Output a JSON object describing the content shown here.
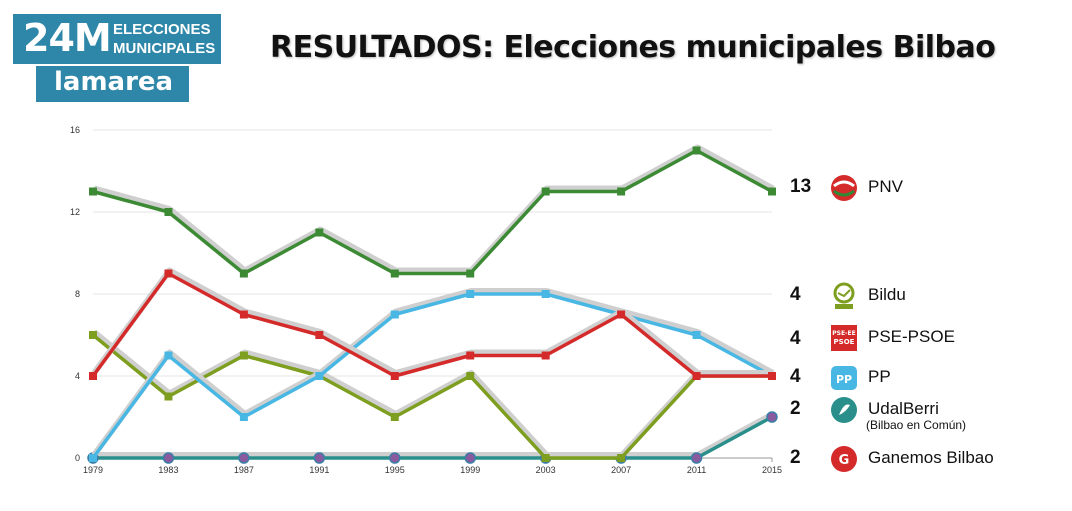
{
  "logo": {
    "big": "24M",
    "line1": "ELECCIONES",
    "line2": "MUNICIPALES",
    "brand": "lamarea"
  },
  "title": "RESULTADOS: Elecciones municipales Bilbao",
  "chart_data": {
    "type": "line",
    "title": "RESULTADOS: Elecciones municipales Bilbao",
    "xlabel": "",
    "ylabel": "",
    "x": [
      "1979",
      "1983",
      "1987",
      "1991",
      "1995",
      "1999",
      "2003",
      "2007",
      "2011",
      "2015"
    ],
    "ylim": [
      0,
      16
    ],
    "yticks": [
      0,
      4,
      8,
      12,
      16
    ],
    "grid": true,
    "series": [
      {
        "name": "PNV",
        "color": "#3c8a34",
        "marker": "square",
        "values": [
          13,
          12,
          9,
          11,
          9,
          9,
          13,
          13,
          15,
          13
        ]
      },
      {
        "name": "PSE-PSOE",
        "color": "#d42a2a",
        "marker": "square",
        "values": [
          4,
          9,
          7,
          6,
          4,
          5,
          5,
          7,
          4,
          4
        ]
      },
      {
        "name": "PP",
        "color": "#48b7e3",
        "marker": "square",
        "values": [
          0,
          5,
          2,
          4,
          7,
          8,
          8,
          7,
          6,
          4
        ]
      },
      {
        "name": "Bildu",
        "color": "#7d9e1f",
        "marker": "square",
        "values": [
          6,
          3,
          5,
          4,
          2,
          4,
          0,
          0,
          4,
          4
        ]
      },
      {
        "name": "UdalBerri / Ganemos Bilbao",
        "color": "#2a8f8b",
        "marker": "circle",
        "values": [
          0,
          0,
          0,
          0,
          0,
          0,
          0,
          0,
          0,
          2
        ]
      }
    ]
  },
  "legend": [
    {
      "seats": "13",
      "name": "PNV",
      "icon": "pnv-logo-icon",
      "color": "#d42a2a"
    },
    {
      "seats": "4",
      "name": "Bildu",
      "icon": "bildu-logo-icon",
      "color": "#7d9e1f"
    },
    {
      "seats": "4",
      "name": "PSE-PSOE",
      "icon": "psoe-logo-icon",
      "color": "#d42a2a",
      "icon_text_1": "PSE-EE",
      "icon_text_2": "PSOE"
    },
    {
      "seats": "4",
      "name": "PP",
      "icon": "pp-logo-icon",
      "color": "#48b7e3",
      "icon_text": "PP"
    },
    {
      "seats": "2",
      "name": "UdalBerri",
      "note": "(Bilbao en Común)",
      "icon": "udalberri-logo-icon",
      "color": "#2a8f8b"
    },
    {
      "seats": "2",
      "name": "Ganemos Bilbao",
      "icon": "ganemos-logo-icon",
      "color": "#d42a2a",
      "icon_text": "G"
    }
  ]
}
